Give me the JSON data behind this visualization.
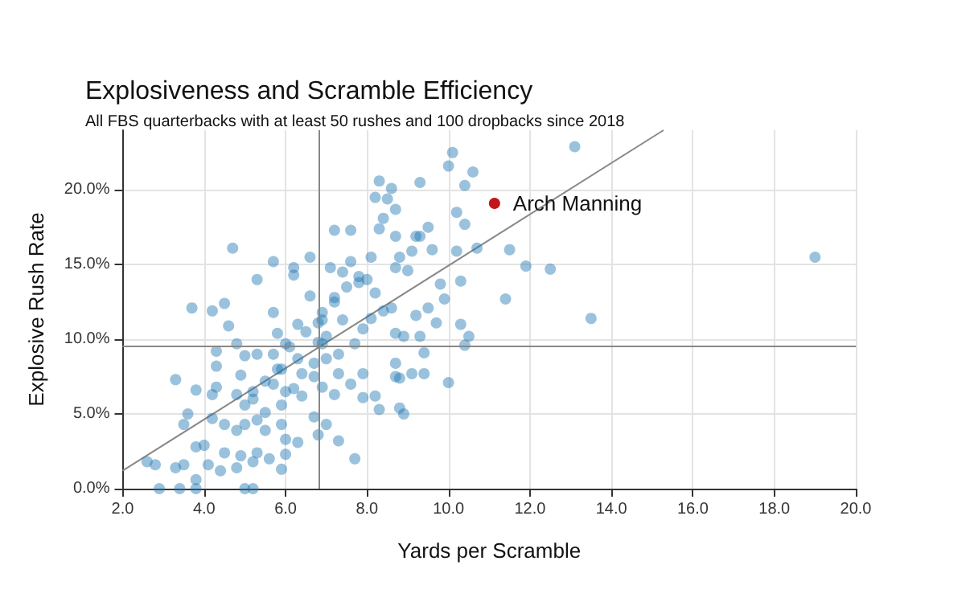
{
  "chart_data": {
    "type": "scatter",
    "title": "Explosiveness and Scramble Efficiency",
    "subtitle": "All FBS quarterbacks with at least 50 rushes and 100 dropbacks since 2018",
    "xlabel": "Yards per Scramble",
    "ylabel": "Explosive Rush Rate",
    "xlim": [
      2,
      20
    ],
    "ylim": [
      0,
      24
    ],
    "xticks": [
      {
        "value": 2,
        "label": "2.0"
      },
      {
        "value": 4,
        "label": "4.0"
      },
      {
        "value": 6,
        "label": "6.0"
      },
      {
        "value": 8,
        "label": "8.0"
      },
      {
        "value": 10,
        "label": "10.0"
      },
      {
        "value": 12,
        "label": "12.0"
      },
      {
        "value": 14,
        "label": "14.0"
      },
      {
        "value": 16,
        "label": "16.0"
      },
      {
        "value": 18,
        "label": "18.0"
      },
      {
        "value": 20,
        "label": "20.0"
      }
    ],
    "yticks": [
      {
        "value": 0,
        "label": "0.0%"
      },
      {
        "value": 5,
        "label": "5.0%"
      },
      {
        "value": 10,
        "label": "10.0%"
      },
      {
        "value": 15,
        "label": "15.0%"
      },
      {
        "value": 20,
        "label": "20.0%"
      }
    ],
    "grid": true,
    "marker": "circle",
    "ref_lines": [
      {
        "axis": "x",
        "value": 6.83,
        "color": "#888888"
      },
      {
        "axis": "y",
        "value": 9.6,
        "color": "#888888"
      }
    ],
    "series": [
      {
        "color": "#1f77b4",
        "x": [
          2.6,
          2.8,
          3.3,
          3.5,
          2.9,
          3.4,
          3.8,
          3.8,
          4.1,
          4.4,
          4.8,
          5.0,
          5.2,
          5.2,
          5.6,
          6.0,
          5.9,
          7.7,
          3.8,
          4.0,
          4.5,
          4.9,
          5.3,
          3.5,
          3.6,
          4.2,
          4.5,
          4.8,
          5.0,
          5.3,
          5.5,
          5.9,
          6.0,
          6.3,
          6.8,
          7.0,
          7.3,
          6.7,
          5.5,
          5.0,
          5.9,
          6.4,
          3.3,
          3.8,
          4.2,
          4.3,
          4.8,
          5.2,
          5.7,
          6.2,
          6.9,
          7.2,
          7.6,
          7.9,
          8.2,
          7.9,
          8.3,
          8.8,
          8.9,
          8.7,
          4.3,
          4.3,
          4.6,
          4.5,
          3.7,
          4.2,
          4.7,
          4.8,
          5.0,
          5.3,
          5.7,
          5.8,
          5.7,
          6.0,
          6.3,
          5.9,
          6.4,
          5.3,
          5.7,
          6.2,
          6.6,
          6.2,
          6.8,
          6.9,
          7.0,
          7.2,
          7.2,
          7.6,
          7.4,
          7.8,
          8.1,
          8.2,
          8.4,
          8.7,
          8.3,
          8.4,
          8.3,
          8.2,
          8.5,
          8.7,
          9.1,
          9.3,
          8.9,
          9.3,
          8.7,
          9.1,
          7.9,
          7.7,
          6.7,
          7.3,
          6.9,
          7.4,
          8.1,
          13.1,
          10.1,
          10.0,
          10.6,
          10.4,
          9.3,
          8.6,
          10.2,
          10.4,
          9.5,
          9.2,
          8.7,
          9.6,
          10.2,
          10.7,
          11.5,
          11.9,
          12.5,
          11.4,
          13.5,
          10.3,
          9.8,
          9.9,
          9.5,
          9.7,
          10.3,
          10.5,
          10.4,
          9.4,
          9.4,
          10.0,
          8.8,
          9.0,
          8.8,
          8.6,
          9.2,
          8.7,
          19.0,
          6.5,
          6.8,
          7.0,
          6.9,
          7.2,
          7.5,
          7.8,
          6.6,
          7.1,
          7.6,
          8.0,
          6.3,
          6.1,
          7.3,
          6.7,
          6.0,
          5.8,
          5.5,
          5.2,
          4.9
        ],
        "values": [
          1.8,
          1.6,
          1.4,
          1.6,
          0,
          0,
          0,
          0.6,
          1.6,
          1.2,
          1.4,
          0,
          0,
          1.8,
          2.0,
          2.3,
          1.3,
          2.0,
          2.8,
          2.9,
          2.4,
          2.2,
          2.4,
          4.3,
          5.0,
          4.7,
          4.3,
          3.9,
          4.3,
          4.6,
          3.9,
          4.3,
          3.3,
          3.1,
          3.6,
          4.3,
          3.2,
          4.8,
          5.1,
          5.6,
          5.6,
          6.2,
          7.3,
          6.6,
          6.3,
          6.8,
          6.3,
          6.0,
          7.0,
          6.7,
          6.8,
          6.3,
          7.0,
          6.1,
          6.2,
          7.7,
          5.3,
          5.4,
          5.0,
          7.5,
          8.2,
          9.2,
          10.9,
          12.4,
          12.1,
          11.9,
          16.1,
          9.7,
          8.9,
          9.0,
          11.8,
          10.4,
          9.0,
          9.7,
          8.7,
          8.0,
          7.7,
          14.0,
          15.2,
          14.3,
          15.5,
          14.8,
          11.1,
          9.7,
          8.7,
          12.5,
          17.3,
          17.3,
          14.5,
          13.8,
          15.5,
          13.1,
          11.9,
          14.8,
          17.4,
          18.1,
          20.6,
          19.5,
          19.4,
          18.7,
          15.9,
          16.9,
          10.2,
          10.2,
          8.4,
          7.7,
          10.7,
          9.7,
          8.4,
          7.7,
          11.3,
          11.3,
          11.4,
          22.9,
          22.5,
          21.6,
          21.2,
          20.3,
          20.5,
          20.1,
          18.5,
          17.7,
          17.5,
          16.9,
          16.9,
          16.0,
          15.9,
          16.1,
          16.0,
          14.9,
          14.7,
          12.7,
          11.4,
          13.9,
          13.7,
          12.7,
          12.1,
          11.1,
          11.0,
          10.2,
          9.6,
          9.1,
          7.7,
          7.1,
          7.4,
          14.6,
          15.5,
          12.1,
          11.6,
          10.4,
          15.5,
          10.5,
          9.8,
          10.2,
          11.8,
          12.8,
          13.5,
          14.2,
          12.9,
          14.8,
          15.2,
          14.0,
          11.0,
          9.5,
          9.0,
          7.5,
          6.5,
          8.0,
          7.2,
          6.5,
          7.6
        ]
      },
      {
        "type": "line",
        "marker": "none",
        "color": "#888888",
        "x": [
          2,
          15.28
        ],
        "values": [
          1.2,
          24.0
        ]
      },
      {
        "name": "Arch Manning",
        "color": "#c0171c",
        "x": [
          11.13
        ],
        "values": [
          19.1
        ]
      }
    ]
  }
}
